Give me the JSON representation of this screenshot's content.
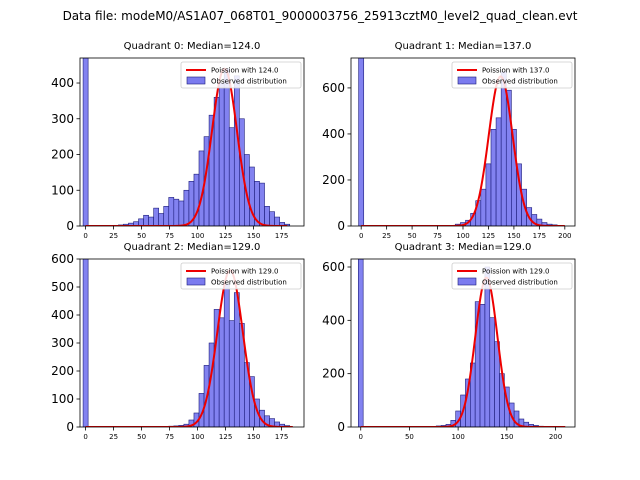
{
  "title": "Data file: modeM0/AS1A07_068T01_9000003756_25913cztM0_level2_quad_clean.evt",
  "colors": {
    "bar_fill": "#7b7bef",
    "bar_edge": "#1c1c7a",
    "curve": "#ee0000",
    "axis": "#000000"
  },
  "chart_data": [
    {
      "type": "bar",
      "title": "Quadrant 0: Median=124.0",
      "legend_location": "top-right",
      "legend": [
        "Poission with 124.0",
        "Observed distribution"
      ],
      "median": 124.0,
      "xlim": [
        -5,
        195
      ],
      "ylim": [
        0,
        470
      ],
      "xticks": [
        0,
        25,
        50,
        75,
        100,
        125,
        150,
        175
      ],
      "yticks": [
        0,
        100,
        200,
        300,
        400
      ],
      "bin_width": 4.5,
      "bins": [
        {
          "x": 0,
          "y": 470
        },
        {
          "x": 27,
          "y": 2
        },
        {
          "x": 31.5,
          "y": 3
        },
        {
          "x": 36,
          "y": 5
        },
        {
          "x": 40.5,
          "y": 8
        },
        {
          "x": 45,
          "y": 12
        },
        {
          "x": 49.5,
          "y": 20
        },
        {
          "x": 54,
          "y": 30
        },
        {
          "x": 58.5,
          "y": 25
        },
        {
          "x": 63,
          "y": 50
        },
        {
          "x": 67.5,
          "y": 35
        },
        {
          "x": 72,
          "y": 55
        },
        {
          "x": 76.5,
          "y": 80
        },
        {
          "x": 81,
          "y": 75
        },
        {
          "x": 85.5,
          "y": 70
        },
        {
          "x": 90,
          "y": 100
        },
        {
          "x": 94.5,
          "y": 125
        },
        {
          "x": 99,
          "y": 145
        },
        {
          "x": 103.5,
          "y": 210
        },
        {
          "x": 108,
          "y": 250
        },
        {
          "x": 112.5,
          "y": 310
        },
        {
          "x": 117,
          "y": 360
        },
        {
          "x": 121.5,
          "y": 400
        },
        {
          "x": 126,
          "y": 440
        },
        {
          "x": 130.5,
          "y": 275
        },
        {
          "x": 135,
          "y": 420
        },
        {
          "x": 139.5,
          "y": 300
        },
        {
          "x": 144,
          "y": 200
        },
        {
          "x": 148.5,
          "y": 165
        },
        {
          "x": 153,
          "y": 125
        },
        {
          "x": 157.5,
          "y": 120
        },
        {
          "x": 162,
          "y": 55
        },
        {
          "x": 166.5,
          "y": 40
        },
        {
          "x": 171,
          "y": 25
        },
        {
          "x": 175.5,
          "y": 10
        },
        {
          "x": 180,
          "y": 5
        }
      ],
      "poisson": {
        "mean": 124.0,
        "peak": 440,
        "x_range": [
          0,
          180
        ]
      }
    },
    {
      "type": "bar",
      "title": "Quadrant 1: Median=137.0",
      "legend_location": "top-right",
      "legend": [
        "Poission with 137.0",
        "Observed distribution"
      ],
      "median": 137.0,
      "xlim": [
        -10,
        210
      ],
      "ylim": [
        0,
        730
      ],
      "xticks": [
        0,
        25,
        50,
        75,
        100,
        125,
        150,
        175,
        200
      ],
      "yticks": [
        0,
        200,
        400,
        600
      ],
      "bin_width": 5,
      "bins": [
        {
          "x": 0,
          "y": 730
        },
        {
          "x": 85,
          "y": 2
        },
        {
          "x": 90,
          "y": 3
        },
        {
          "x": 95,
          "y": 8
        },
        {
          "x": 100,
          "y": 15
        },
        {
          "x": 105,
          "y": 25
        },
        {
          "x": 110,
          "y": 55
        },
        {
          "x": 115,
          "y": 110
        },
        {
          "x": 120,
          "y": 160
        },
        {
          "x": 125,
          "y": 270
        },
        {
          "x": 130,
          "y": 420
        },
        {
          "x": 135,
          "y": 470
        },
        {
          "x": 140,
          "y": 670
        },
        {
          "x": 145,
          "y": 590
        },
        {
          "x": 150,
          "y": 420
        },
        {
          "x": 155,
          "y": 270
        },
        {
          "x": 160,
          "y": 160
        },
        {
          "x": 165,
          "y": 80
        },
        {
          "x": 170,
          "y": 50
        },
        {
          "x": 175,
          "y": 30
        },
        {
          "x": 180,
          "y": 15
        },
        {
          "x": 185,
          "y": 8
        },
        {
          "x": 190,
          "y": 5
        }
      ],
      "poisson": {
        "mean": 137.0,
        "peak": 650,
        "x_range": [
          0,
          200
        ]
      }
    },
    {
      "type": "bar",
      "title": "Quadrant 2: Median=129.0",
      "legend_location": "top-right",
      "legend": [
        "Poission with 129.0",
        "Observed distribution"
      ],
      "median": 129.0,
      "xlim": [
        -5,
        195
      ],
      "ylim": [
        0,
        600
      ],
      "xticks": [
        0,
        25,
        50,
        75,
        100,
        125,
        150,
        175
      ],
      "yticks": [
        0,
        100,
        200,
        300,
        400,
        500,
        600
      ],
      "bin_width": 4.5,
      "bins": [
        {
          "x": 0,
          "y": 600
        },
        {
          "x": 72,
          "y": 2
        },
        {
          "x": 76.5,
          "y": 3
        },
        {
          "x": 81,
          "y": 4
        },
        {
          "x": 85.5,
          "y": 6
        },
        {
          "x": 90,
          "y": 10
        },
        {
          "x": 94.5,
          "y": 25
        },
        {
          "x": 99,
          "y": 50
        },
        {
          "x": 103.5,
          "y": 120
        },
        {
          "x": 108,
          "y": 220
        },
        {
          "x": 112.5,
          "y": 300
        },
        {
          "x": 117,
          "y": 420
        },
        {
          "x": 121.5,
          "y": 390
        },
        {
          "x": 126,
          "y": 510
        },
        {
          "x": 130.5,
          "y": 380
        },
        {
          "x": 135,
          "y": 480
        },
        {
          "x": 139.5,
          "y": 370
        },
        {
          "x": 144,
          "y": 230
        },
        {
          "x": 148.5,
          "y": 180
        },
        {
          "x": 153,
          "y": 100
        },
        {
          "x": 157.5,
          "y": 60
        },
        {
          "x": 162,
          "y": 40
        },
        {
          "x": 166.5,
          "y": 30
        },
        {
          "x": 171,
          "y": 18
        },
        {
          "x": 175.5,
          "y": 10
        },
        {
          "x": 180,
          "y": 5
        }
      ],
      "poisson": {
        "mean": 129.0,
        "peak": 560,
        "x_range": [
          0,
          185
        ]
      }
    },
    {
      "type": "bar",
      "title": "Quadrant 3: Median=129.0",
      "legend_location": "top-right",
      "legend": [
        "Poission with 129.0",
        "Observed distribution"
      ],
      "median": 129.0,
      "xlim": [
        -10,
        220
      ],
      "ylim": [
        0,
        630
      ],
      "xticks": [
        0,
        50,
        100,
        150,
        200
      ],
      "yticks": [
        0,
        200,
        400,
        600
      ],
      "bin_width": 5,
      "bins": [
        {
          "x": 0,
          "y": 630
        },
        {
          "x": 75,
          "y": 2
        },
        {
          "x": 80,
          "y": 4
        },
        {
          "x": 85,
          "y": 6
        },
        {
          "x": 90,
          "y": 10
        },
        {
          "x": 95,
          "y": 25
        },
        {
          "x": 100,
          "y": 60
        },
        {
          "x": 105,
          "y": 120
        },
        {
          "x": 110,
          "y": 180
        },
        {
          "x": 115,
          "y": 240
        },
        {
          "x": 120,
          "y": 470
        },
        {
          "x": 125,
          "y": 460
        },
        {
          "x": 130,
          "y": 600
        },
        {
          "x": 135,
          "y": 410
        },
        {
          "x": 140,
          "y": 320
        },
        {
          "x": 145,
          "y": 200
        },
        {
          "x": 150,
          "y": 150
        },
        {
          "x": 155,
          "y": 90
        },
        {
          "x": 160,
          "y": 60
        },
        {
          "x": 165,
          "y": 30
        },
        {
          "x": 170,
          "y": 18
        },
        {
          "x": 175,
          "y": 10
        },
        {
          "x": 180,
          "y": 6
        },
        {
          "x": 185,
          "y": 3
        }
      ],
      "poisson": {
        "mean": 129.0,
        "peak": 560,
        "x_range": [
          0,
          210
        ]
      }
    }
  ]
}
